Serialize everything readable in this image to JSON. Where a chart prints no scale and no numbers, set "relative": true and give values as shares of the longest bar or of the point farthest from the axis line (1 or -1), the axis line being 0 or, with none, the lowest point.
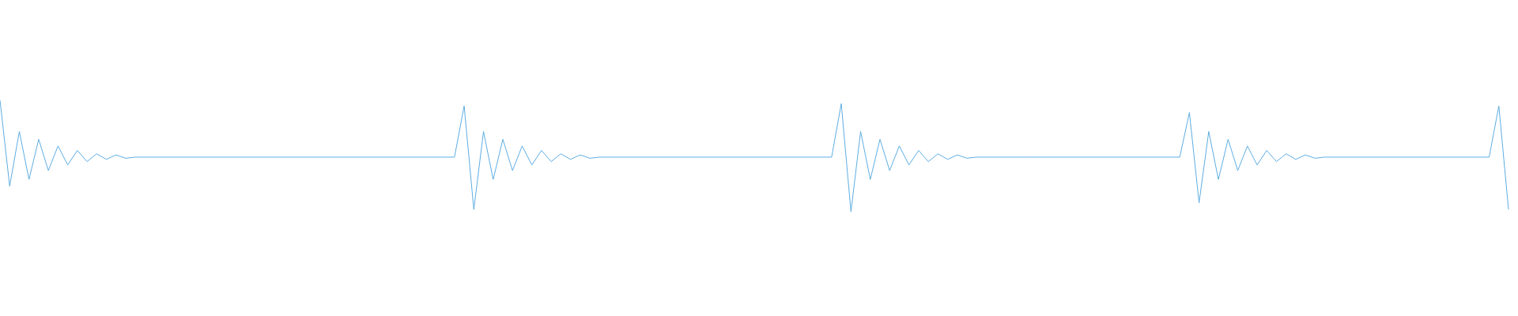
{
  "chart_data": {
    "type": "line",
    "relative": true,
    "color": "#5dade2",
    "marker": "none",
    "line_style": "solid",
    "categories": [
      null,
      null,
      null,
      null,
      null,
      null,
      null,
      null,
      null,
      null,
      null,
      null,
      null,
      null,
      null,
      null,
      null,
      null,
      null,
      null,
      null,
      null,
      null,
      null,
      null,
      null,
      null,
      null,
      null,
      null,
      null,
      null,
      null,
      null,
      null,
      null,
      null,
      null,
      null,
      null,
      null,
      null,
      null,
      null,
      null,
      null,
      null,
      null,
      null,
      null,
      null,
      null,
      null,
      null,
      null,
      null,
      null,
      null,
      null,
      null,
      null,
      null,
      null,
      null,
      null,
      null,
      null,
      null,
      null,
      null,
      null,
      null,
      null,
      null,
      null,
      null,
      null,
      null,
      null,
      null,
      null,
      null,
      null,
      null,
      null,
      null,
      null,
      null,
      null,
      null,
      null,
      null,
      null,
      null,
      null,
      null,
      null,
      null,
      null,
      null,
      null,
      null,
      null,
      null,
      null,
      null,
      null,
      null,
      null,
      null,
      null,
      null,
      null,
      null,
      null,
      null,
      null,
      null,
      null,
      null,
      null,
      null,
      null,
      null,
      null,
      null,
      null,
      null,
      null,
      null,
      null,
      null,
      null,
      null,
      null,
      null,
      null,
      null,
      null,
      null,
      null,
      null,
      null,
      null,
      null,
      null,
      null,
      null,
      null,
      null,
      null,
      null,
      null,
      null,
      null,
      null,
      null
    ],
    "values": [
      1.0,
      0.23,
      0.72,
      0.29,
      0.65,
      0.37,
      0.59,
      0.42,
      0.55,
      0.45,
      0.52,
      0.47,
      0.51,
      0.48,
      0.49,
      0.49,
      0.49,
      0.49,
      0.49,
      0.49,
      0.49,
      0.49,
      0.49,
      0.49,
      0.49,
      0.49,
      0.49,
      0.49,
      0.49,
      0.49,
      0.49,
      0.49,
      0.49,
      0.49,
      0.49,
      0.49,
      0.49,
      0.49,
      0.49,
      0.49,
      0.49,
      0.49,
      0.49,
      0.49,
      0.49,
      0.49,
      0.49,
      0.49,
      0.95,
      0.02,
      0.72,
      0.29,
      0.65,
      0.37,
      0.59,
      0.42,
      0.55,
      0.45,
      0.52,
      0.47,
      0.51,
      0.48,
      0.49,
      0.49,
      0.49,
      0.49,
      0.49,
      0.49,
      0.49,
      0.49,
      0.49,
      0.49,
      0.49,
      0.49,
      0.49,
      0.49,
      0.49,
      0.49,
      0.49,
      0.49,
      0.49,
      0.49,
      0.49,
      0.49,
      0.49,
      0.49,
      0.49,
      0.97,
      0,
      0.72,
      0.29,
      0.65,
      0.37,
      0.59,
      0.42,
      0.55,
      0.45,
      0.52,
      0.47,
      0.51,
      0.48,
      0.49,
      0.49,
      0.49,
      0.49,
      0.49,
      0.49,
      0.49,
      0.49,
      0.49,
      0.49,
      0.49,
      0.49,
      0.49,
      0.49,
      0.49,
      0.49,
      0.49,
      0.49,
      0.49,
      0.49,
      0.49,
      0.49,
      0.89,
      0.08,
      0.72,
      0.29,
      0.65,
      0.37,
      0.59,
      0.42,
      0.55,
      0.45,
      0.52,
      0.47,
      0.51,
      0.48,
      0.49,
      0.49,
      0.49,
      0.49,
      0.49,
      0.49,
      0.49,
      0.49,
      0.49,
      0.49,
      0.49,
      0.49,
      0.49,
      0.49,
      0.49,
      0.49,
      0.49,
      0.49,
      0.95,
      0.02
    ]
  }
}
